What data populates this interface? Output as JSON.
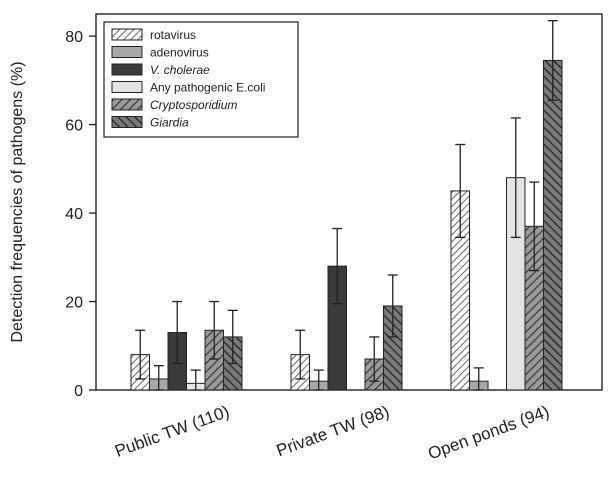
{
  "chart_data": {
    "type": "bar",
    "categories": [
      "Public TW (110)",
      "Private TW (98)",
      "Open ponds (94)"
    ],
    "ylabel": "Detection frequencies of pathogens (%)",
    "xlabel": "",
    "ylim": [
      0,
      85
    ],
    "yticks": [
      0,
      20,
      40,
      60,
      80
    ],
    "grid": false,
    "legend_position": "top-left",
    "series": [
      {
        "name": "rotavirus",
        "values": [
          8,
          8,
          45
        ],
        "errors": [
          5.5,
          5.5,
          10.5
        ],
        "pattern": "hatch-dense",
        "color": "#c8c8c8"
      },
      {
        "name": "adenovirus",
        "values": [
          2.5,
          2,
          2
        ],
        "errors": [
          3,
          2.5,
          3
        ],
        "pattern": "solid",
        "color": "#a8a8a8"
      },
      {
        "name": "V. cholerae",
        "values": [
          13,
          28,
          0
        ],
        "errors": [
          7,
          8.5,
          0
        ],
        "pattern": "solid",
        "color": "#3a3a3a"
      },
      {
        "name": "Any pathogenic E.coli",
        "values": [
          1.5,
          0,
          48
        ],
        "errors": [
          3,
          0,
          13.5
        ],
        "pattern": "solid",
        "color": "#e4e4e4"
      },
      {
        "name": "Cryptosporidium",
        "values": [
          13.5,
          7,
          37
        ],
        "errors": [
          6.5,
          5,
          10
        ],
        "pattern": "hatch-dark",
        "color": "#7a7a7a"
      },
      {
        "name": "Giardia",
        "values": [
          12,
          19,
          74.5
        ],
        "errors": [
          6,
          7,
          9
        ],
        "pattern": "hatch-back",
        "color": "#5a5a5a"
      }
    ]
  }
}
